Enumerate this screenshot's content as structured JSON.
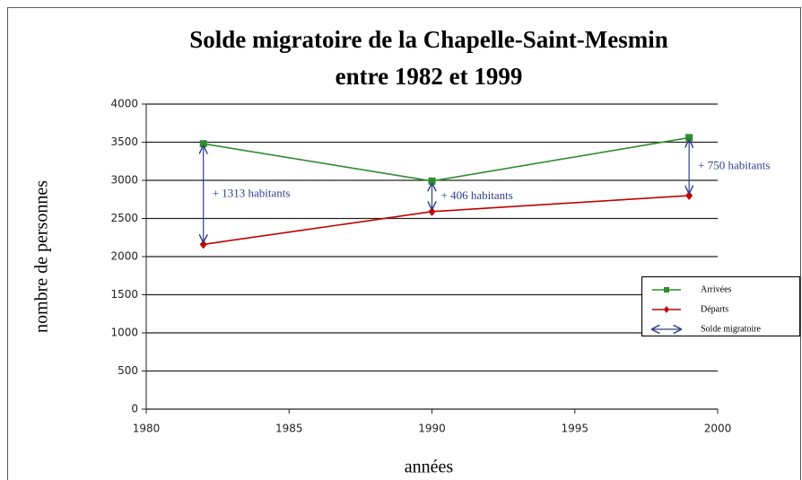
{
  "chart_data": {
    "type": "line",
    "title": [
      "Solde migratoire de la Chapelle-Saint-Mesmin",
      "entre 1982 et 1999"
    ],
    "xlabel": "années",
    "ylabel": "nombre de personnes",
    "x": [
      1982,
      1990,
      1999
    ],
    "series": [
      {
        "name": "Arrivées",
        "color": "#2e8b2e",
        "marker": "square",
        "values": [
          3480,
          2990,
          3560
        ]
      },
      {
        "name": "Départs",
        "color": "#c00000",
        "marker": "diamond",
        "values": [
          2160,
          2590,
          2800
        ]
      }
    ],
    "balance_legend": "Solde migratoire",
    "balance_color": "#2f3f8a",
    "annotations": [
      {
        "x": 1982,
        "text": "+ 1313 habitants"
      },
      {
        "x": 1990,
        "text": "+ 406 habitants"
      },
      {
        "x": 1999,
        "text": "+ 750 habitants"
      }
    ],
    "xlim": [
      1980,
      2000
    ],
    "xticks": [
      1980,
      1985,
      1990,
      1995,
      2000
    ],
    "ylim": [
      0,
      4000
    ],
    "yticks": [
      0,
      500,
      1000,
      1500,
      2000,
      2500,
      3000,
      3500,
      4000
    ],
    "grid": true,
    "legend": "right"
  }
}
